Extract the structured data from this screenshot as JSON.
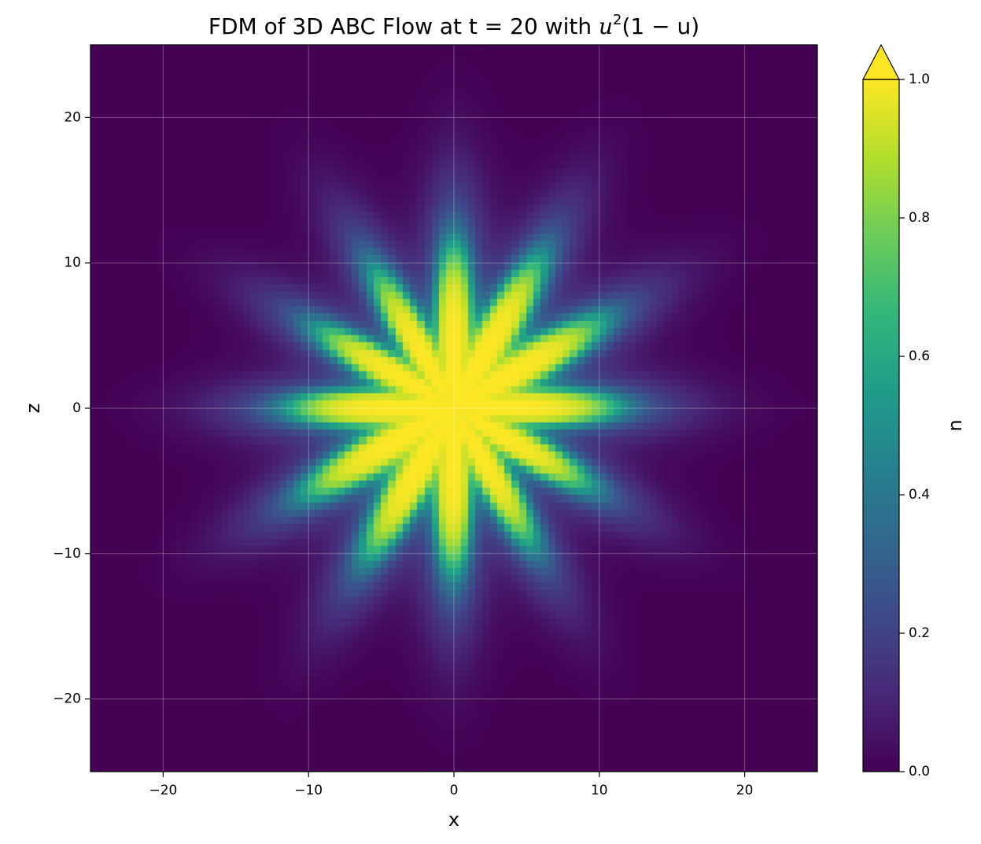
{
  "chart_data": {
    "type": "heatmap",
    "title_plain": "FDM of 3D ABC Flow at t = 20 with ",
    "title_math": {
      "base": "u",
      "exponent": "2",
      "rest": "(1 − u)"
    },
    "xlabel": "x",
    "ylabel": "z",
    "xlim": [
      -25,
      25
    ],
    "ylim": [
      -25,
      25
    ],
    "xticks": [
      -20,
      -10,
      0,
      10,
      20
    ],
    "yticks": [
      -20,
      -10,
      0,
      10,
      20
    ],
    "xtick_labels": [
      "−20",
      "−10",
      "0",
      "10",
      "20"
    ],
    "ytick_labels": [
      "−20",
      "−10",
      "0",
      "10",
      "20"
    ],
    "grid": true,
    "colormap": "viridis",
    "colorbar": {
      "label": "u",
      "range": [
        0.0,
        1.0
      ],
      "extend": "max",
      "ticks": [
        0.0,
        0.2,
        0.4,
        0.6,
        0.8,
        1.0
      ],
      "tick_labels": [
        "0.0",
        "0.2",
        "0.4",
        "0.6",
        "0.8",
        "1.0"
      ]
    },
    "field": {
      "grid_resolution": 100,
      "core_radius": 8.5,
      "lobe_count": 12,
      "lobe_amplitude": 2.6,
      "lobe_phase": 0.0,
      "elongation_axis_angle_deg": 45,
      "elongation": 0.6,
      "transition_width": 1.1,
      "halo_radius": 6.5,
      "halo_level": 0.22,
      "center": [
        0,
        0
      ]
    }
  }
}
